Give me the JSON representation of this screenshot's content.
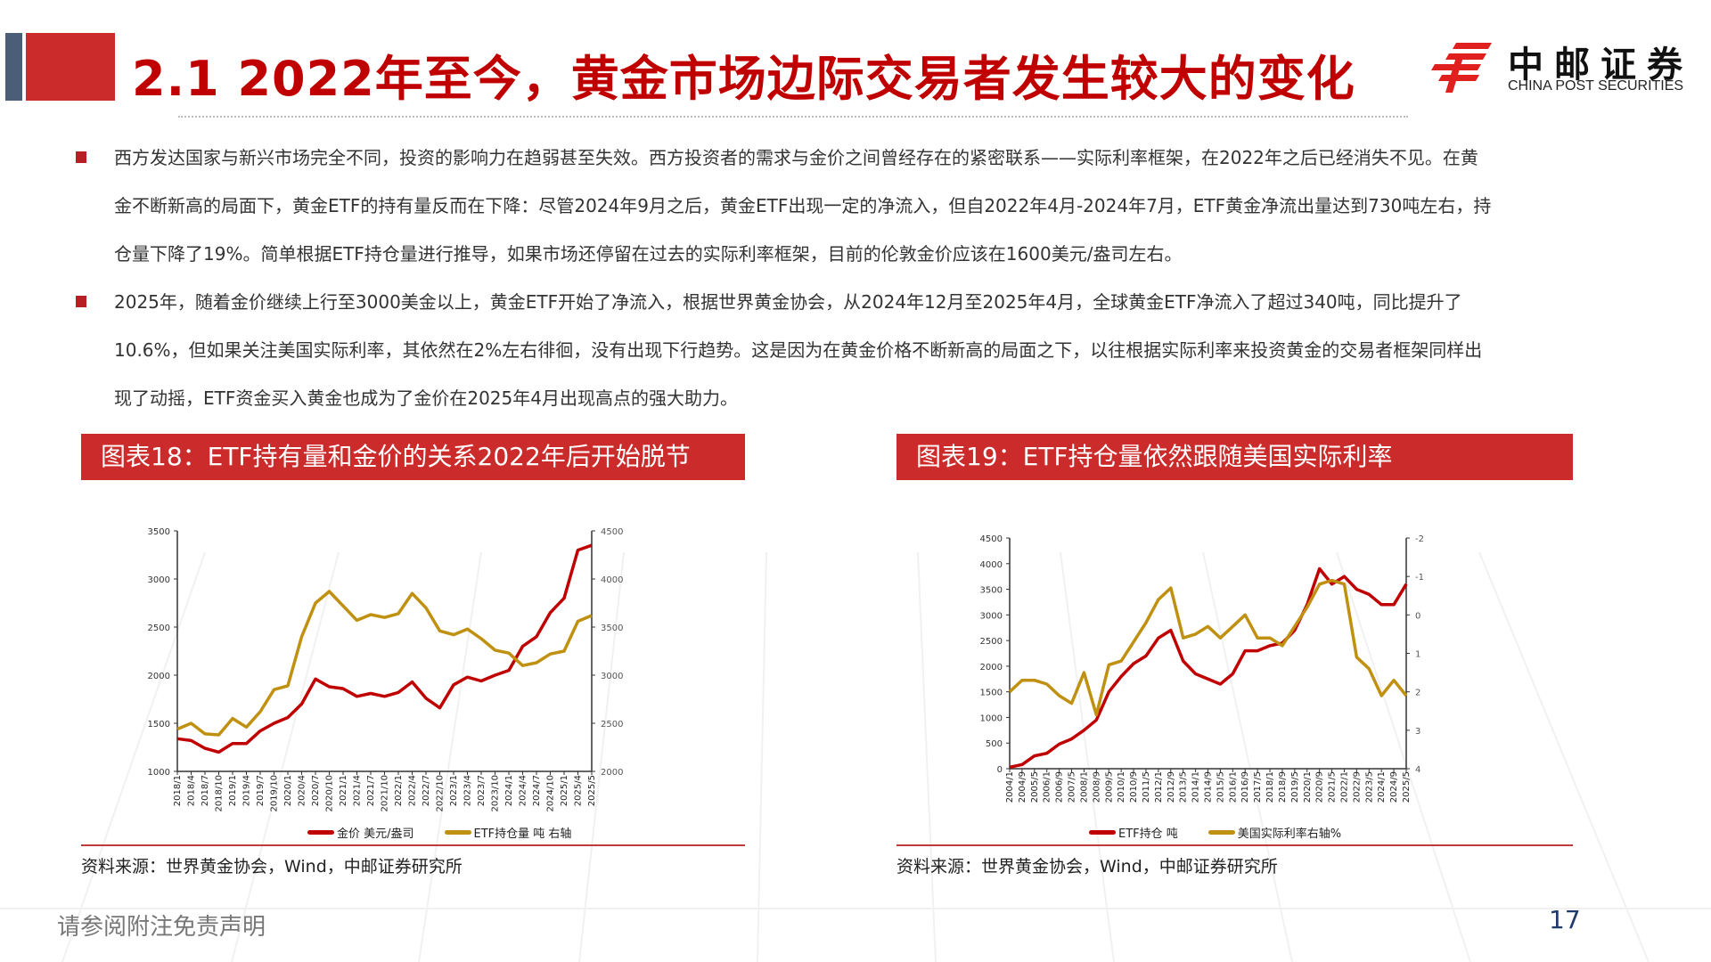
{
  "header": {
    "title": "2.1 2022年至今，黄金市场边际交易者发生较大的变化",
    "logo_cn": "中邮证券",
    "logo_en": "CHINA POST SECURITIES",
    "accent_color": "#c00000",
    "block_red": "#cc2b2b",
    "block_blue": "#4a5e77"
  },
  "bullets": [
    {
      "lines": [
        "西方发达国家与新兴市场完全不同，投资的影响力在趋弱甚至失效。西方投资者的需求与金价之间曾经存在的紧密联系——实际利率框架，在2022年之后已经消失不见。在黄",
        "金不断新高的局面下，黄金ETF的持有量反而在下降：尽管2024年9月之后，黄金ETF出现一定的净流入，但自2022年4月-2024年7月，ETF黄金净流出量达到730吨左右，持",
        "仓量下降了19%。简单根据ETF持仓量进行推导，如果市场还停留在过去的实际利率框架，目前的伦敦金价应该在1600美元/盎司左右。"
      ]
    },
    {
      "lines": [
        "2025年，随着金价继续上行至3000美金以上，黄金ETF开始了净流入，根据世界黄金协会，从2024年12月至2025年4月，全球黄金ETF净流入了超过340吨，同比提升了",
        "10.6%，但如果关注美国实际利率，其依然在2%左右徘徊，没有出现下行趋势。这是因为在黄金价格不断新高的局面之下，以往根据实际利率来投资黄金的交易者框架同样出",
        "现了动摇，ETF资金买入黄金也成为了金价在2025年4月出现高点的强大助力。"
      ]
    }
  ],
  "figures": [
    {
      "title": "图表18：ETF持有量和金价的关系2022年后开始脱节",
      "legend": [
        "金价 美元/盎司",
        "ETF持仓量 吨 右轴"
      ],
      "source": "资料来源：世界黄金协会，Wind，中邮证券研究所"
    },
    {
      "title": "图表19：ETF持仓量依然跟随美国实际利率",
      "legend": [
        "ETF持仓 吨",
        "美国实际利率右轴%"
      ],
      "source": "资料来源：世界黄金协会，Wind，中邮证券研究所"
    }
  ],
  "chart_data": [
    {
      "type": "line",
      "title": "图表18：ETF持有量和金价的关系2022年后开始脱节",
      "x": [
        "2018/1",
        "2018/4",
        "2018/7",
        "2018/10",
        "2019/1",
        "2019/4",
        "2019/7",
        "2019/10",
        "2020/1",
        "2020/4",
        "2020/7",
        "2020/10",
        "2021/1",
        "2021/4",
        "2021/7",
        "2021/10",
        "2022/1",
        "2022/4",
        "2022/7",
        "2022/10",
        "2023/1",
        "2023/4",
        "2023/7",
        "2023/10",
        "2024/1",
        "2024/4",
        "2024/7",
        "2024/10",
        "2025/1",
        "2025/4",
        "2025/5"
      ],
      "series": [
        {
          "name": "金价 美元/盎司",
          "axis": "left",
          "color": "#c00000",
          "values": [
            1340,
            1320,
            1240,
            1200,
            1290,
            1290,
            1420,
            1500,
            1560,
            1700,
            1960,
            1880,
            1860,
            1780,
            1810,
            1780,
            1820,
            1930,
            1760,
            1660,
            1900,
            1980,
            1940,
            2000,
            2050,
            2300,
            2400,
            2650,
            2800,
            3300,
            3350
          ]
        },
        {
          "name": "ETF持仓量 吨 右轴",
          "axis": "right",
          "color": "#c09010",
          "values": [
            2440,
            2500,
            2390,
            2380,
            2550,
            2460,
            2620,
            2850,
            2890,
            3400,
            3750,
            3870,
            3720,
            3570,
            3630,
            3600,
            3640,
            3850,
            3700,
            3460,
            3420,
            3480,
            3380,
            3260,
            3230,
            3100,
            3130,
            3220,
            3250,
            3560,
            3620
          ]
        }
      ],
      "ylim_left": [
        1000,
        3500
      ],
      "yticks_left": [
        1000,
        1500,
        2000,
        2500,
        3000,
        3500
      ],
      "ylim_right": [
        2000,
        4500
      ],
      "yticks_right": [
        2000,
        2500,
        3000,
        3500,
        4000,
        4500
      ],
      "legend_position": "bottom"
    },
    {
      "type": "line",
      "title": "图表19：ETF持仓量依然跟随美国实际利率",
      "x": [
        "2004/1",
        "2004/9",
        "2005/5",
        "2006/1",
        "2006/9",
        "2007/5",
        "2008/1",
        "2008/9",
        "2009/5",
        "2010/1",
        "2010/9",
        "2011/5",
        "2012/1",
        "2012/9",
        "2013/5",
        "2014/1",
        "2014/9",
        "2015/5",
        "2016/1",
        "2016/9",
        "2017/5",
        "2018/1",
        "2018/9",
        "2019/5",
        "2020/1",
        "2020/9",
        "2021/5",
        "2022/1",
        "2022/9",
        "2023/5",
        "2024/1",
        "2024/9",
        "2025/5"
      ],
      "series": [
        {
          "name": "ETF持仓 吨",
          "axis": "left",
          "color": "#c00000",
          "values": [
            30,
            80,
            250,
            300,
            480,
            580,
            750,
            950,
            1500,
            1800,
            2050,
            2200,
            2550,
            2700,
            2100,
            1850,
            1750,
            1650,
            1850,
            2300,
            2300,
            2400,
            2450,
            2700,
            3200,
            3900,
            3600,
            3750,
            3500,
            3400,
            3200,
            3200,
            3600
          ]
        },
        {
          "name": "美国实际利率右轴%",
          "axis": "right",
          "color": "#c09010",
          "values": [
            2.0,
            1.7,
            1.7,
            1.8,
            2.1,
            2.3,
            1.5,
            2.6,
            1.3,
            1.2,
            0.7,
            0.2,
            -0.4,
            -0.7,
            0.6,
            0.5,
            0.3,
            0.6,
            0.3,
            0.0,
            0.6,
            0.6,
            0.8,
            0.3,
            -0.2,
            -0.8,
            -0.9,
            -0.8,
            1.1,
            1.4,
            2.1,
            1.7,
            2.1
          ]
        }
      ],
      "ylim_left": [
        0,
        4500
      ],
      "yticks_left": [
        0,
        500,
        1000,
        1500,
        2000,
        2500,
        3000,
        3500,
        4000,
        4500
      ],
      "ylim_right": [
        4,
        -2
      ],
      "yticks_right": [
        -2,
        -1,
        0,
        1,
        2,
        3,
        4
      ],
      "right_axis_inverted": true,
      "legend_position": "bottom"
    }
  ],
  "footer": {
    "disclaimer": "请参阅附注免责声明",
    "page_number": "17"
  }
}
